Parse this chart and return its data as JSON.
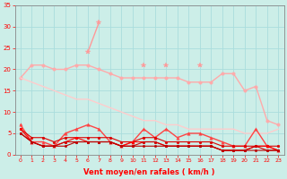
{
  "title": "",
  "xlabel": "Vent moyen/en rafales ( km/h )",
  "background_color": "#cceee8",
  "grid_color": "#aadddd",
  "x": [
    0,
    1,
    2,
    3,
    4,
    5,
    6,
    7,
    8,
    9,
    10,
    11,
    12,
    13,
    14,
    15,
    16,
    17,
    18,
    19,
    20,
    21,
    22,
    23
  ],
  "series": [
    {
      "label": "rafales_light1",
      "data": [
        18,
        21,
        21,
        20,
        20,
        21,
        21,
        20,
        19,
        18,
        18,
        18,
        18,
        18,
        18,
        17,
        17,
        17,
        19,
        19,
        15,
        16,
        8,
        7
      ],
      "color": "#ffaaaa",
      "linewidth": 1.0,
      "marker": "o",
      "markersize": 2.5
    },
    {
      "label": "rafales_peak",
      "data": [
        null,
        null,
        null,
        null,
        null,
        null,
        24,
        31,
        null,
        null,
        null,
        21,
        null,
        21,
        null,
        null,
        21,
        null,
        null,
        null,
        null,
        null,
        null,
        null
      ],
      "color": "#ff9999",
      "linewidth": 1.0,
      "marker": "*",
      "markersize": 4
    },
    {
      "label": "moyen_light",
      "data": [
        18,
        17,
        16,
        15,
        14,
        13,
        13,
        12,
        11,
        10,
        9,
        8,
        8,
        7,
        7,
        6,
        6,
        6,
        6,
        6,
        5,
        5,
        5,
        6
      ],
      "color": "#ffcccc",
      "linewidth": 1.0,
      "marker": null,
      "markersize": 0
    },
    {
      "label": "vent_medium1",
      "data": [
        7,
        3,
        3,
        2,
        5,
        6,
        7,
        6,
        3,
        2,
        3,
        6,
        4,
        6,
        4,
        5,
        5,
        4,
        3,
        2,
        2,
        6,
        2,
        1
      ],
      "color": "#ff4444",
      "linewidth": 1.0,
      "marker": "^",
      "markersize": 2.5
    },
    {
      "label": "vent_medium2",
      "data": [
        6,
        4,
        4,
        3,
        4,
        4,
        4,
        4,
        4,
        3,
        3,
        4,
        4,
        3,
        3,
        3,
        3,
        3,
        2,
        2,
        2,
        2,
        2,
        2
      ],
      "color": "#dd0000",
      "linewidth": 0.8,
      "marker": "o",
      "markersize": 2
    },
    {
      "label": "vent_low1",
      "data": [
        6,
        3,
        2,
        2,
        3,
        4,
        3,
        3,
        3,
        2,
        3,
        3,
        3,
        2,
        2,
        2,
        2,
        2,
        1,
        1,
        1,
        2,
        2,
        1
      ],
      "color": "#ff0000",
      "linewidth": 0.8,
      "marker": "o",
      "markersize": 1.8
    },
    {
      "label": "vent_low2",
      "data": [
        5,
        3,
        2,
        2,
        3,
        3,
        3,
        3,
        3,
        2,
        2,
        3,
        3,
        2,
        2,
        2,
        2,
        2,
        1,
        1,
        1,
        2,
        1,
        1
      ],
      "color": "#cc0000",
      "linewidth": 0.8,
      "marker": "o",
      "markersize": 1.8
    },
    {
      "label": "vent_low3",
      "data": [
        5,
        3,
        2,
        2,
        2,
        3,
        3,
        3,
        3,
        2,
        2,
        2,
        2,
        2,
        2,
        2,
        2,
        2,
        1,
        1,
        1,
        1,
        1,
        1
      ],
      "color": "#bb0000",
      "linewidth": 0.8,
      "marker": "o",
      "markersize": 1.8
    }
  ],
  "ylim": [
    0,
    35
  ],
  "yticks": [
    0,
    5,
    10,
    15,
    20,
    25,
    30,
    35
  ],
  "xticks": [
    0,
    1,
    2,
    3,
    4,
    5,
    6,
    7,
    8,
    9,
    10,
    11,
    12,
    13,
    14,
    15,
    16,
    17,
    18,
    19,
    20,
    21,
    22,
    23
  ],
  "tick_color": "#ff0000",
  "label_color": "#ff0000",
  "axis_color": "#888888",
  "xlabel_fontsize": 6.0,
  "xlabel_fontweight": "bold"
}
